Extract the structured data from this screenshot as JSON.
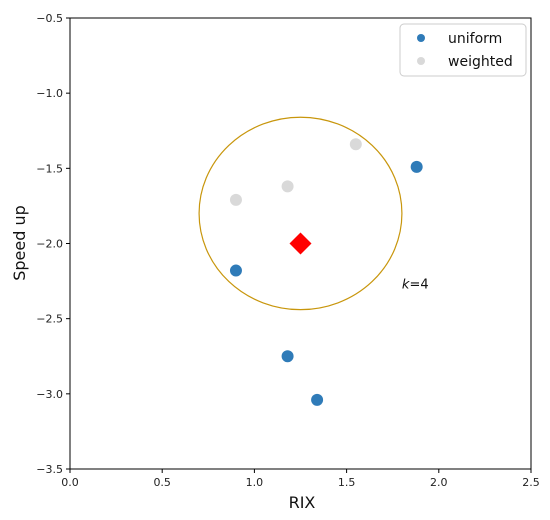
{
  "chart_data": {
    "type": "scatter",
    "title": "",
    "xlabel": "RIX",
    "ylabel": "Speed up",
    "xlim": [
      0.0,
      2.5
    ],
    "ylim": [
      -3.5,
      -0.5
    ],
    "xticks": [
      0.0,
      0.5,
      1.0,
      1.5,
      2.0,
      2.5
    ],
    "yticks": [
      -3.5,
      -3.0,
      -2.5,
      -2.0,
      -1.5,
      -1.0,
      -0.5
    ],
    "xtick_labels": [
      "0.0",
      "0.5",
      "1.0",
      "1.5",
      "2.0",
      "2.5"
    ],
    "ytick_labels": [
      "−3.5",
      "−3.0",
      "−2.5",
      "−2.0",
      "−1.5",
      "−1.0",
      "−0.5"
    ],
    "grid": false,
    "legend_position": "top-right",
    "series": [
      {
        "name": "uniform",
        "color": "#2f7bb8",
        "points": [
          {
            "x": 1.88,
            "y": -1.49
          },
          {
            "x": 0.9,
            "y": -2.18
          },
          {
            "x": 1.18,
            "y": -2.75
          },
          {
            "x": 1.34,
            "y": -3.04
          }
        ]
      },
      {
        "name": "weighted",
        "color": "#d9d9d9",
        "points": [
          {
            "x": 1.55,
            "y": -1.34
          },
          {
            "x": 1.18,
            "y": -1.62
          },
          {
            "x": 0.9,
            "y": -1.71
          }
        ]
      }
    ],
    "query_point": {
      "x": 1.25,
      "y": -2.0,
      "color": "#ff0000",
      "marker": "diamond"
    },
    "neighborhood_circle": {
      "center_x": 1.25,
      "center_y": -1.8,
      "radius_x": 0.55,
      "radius_y": 0.64,
      "color": "#c8960c"
    },
    "annotation": {
      "variable": "k",
      "equals": "=4",
      "x": 1.8,
      "y": -2.3
    }
  }
}
